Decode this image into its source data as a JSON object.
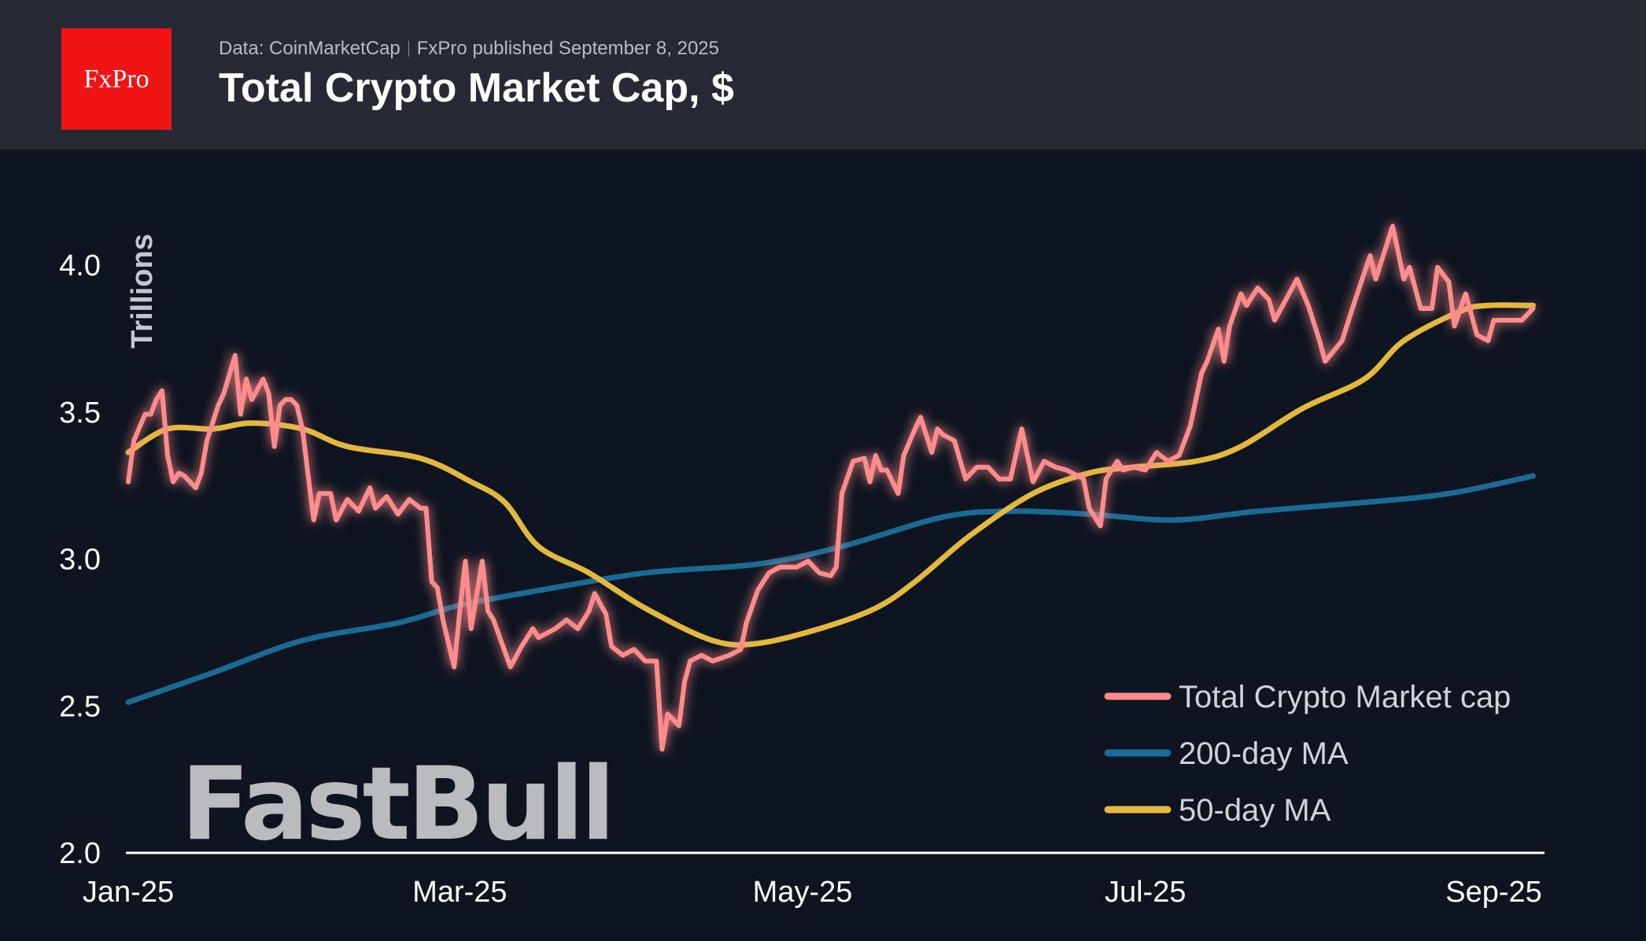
{
  "header": {
    "logo_text": "FxPro",
    "source": "Data: CoinMarketCap",
    "published": "FxPro published September 8, 2025",
    "title": "Total Crypto Market Cap, $"
  },
  "watermark": "FastBull",
  "chart_data": {
    "type": "line",
    "title": "Total Crypto Market Cap, $",
    "ylabel": "Trillions",
    "xlabel": "",
    "ylim": [
      2.0,
      4.0
    ],
    "yticks": [
      "2.0",
      "2.5",
      "3.0",
      "3.5",
      "4.0"
    ],
    "xticks": [
      {
        "date": "2025-01-01",
        "label": "Jan-25"
      },
      {
        "date": "2025-03-01",
        "label": "Mar-25"
      },
      {
        "date": "2025-05-01",
        "label": "May-25"
      },
      {
        "date": "2025-07-01",
        "label": "Jul-25"
      },
      {
        "date": "2025-09-01",
        "label": "Sep-25"
      }
    ],
    "grid": false,
    "legend_position": "bottom-right",
    "series": [
      {
        "name": "Total Crypto Market cap",
        "color": "#ff8c8c",
        "points": [
          [
            "2025-01-01",
            3.26
          ],
          [
            "2025-01-02",
            3.4
          ],
          [
            "2025-01-04",
            3.49
          ],
          [
            "2025-01-05",
            3.49
          ],
          [
            "2025-01-06",
            3.54
          ],
          [
            "2025-01-07",
            3.57
          ],
          [
            "2025-01-08",
            3.35
          ],
          [
            "2025-01-09",
            3.26
          ],
          [
            "2025-01-10",
            3.29
          ],
          [
            "2025-01-11",
            3.28
          ],
          [
            "2025-01-13",
            3.24
          ],
          [
            "2025-01-14",
            3.29
          ],
          [
            "2025-01-15",
            3.4
          ],
          [
            "2025-01-17",
            3.52
          ],
          [
            "2025-01-18",
            3.56
          ],
          [
            "2025-01-20",
            3.69
          ],
          [
            "2025-01-21",
            3.49
          ],
          [
            "2025-01-22",
            3.61
          ],
          [
            "2025-01-23",
            3.54
          ],
          [
            "2025-01-25",
            3.61
          ],
          [
            "2025-01-26",
            3.56
          ],
          [
            "2025-01-27",
            3.38
          ],
          [
            "2025-01-28",
            3.52
          ],
          [
            "2025-01-29",
            3.54
          ],
          [
            "2025-01-30",
            3.54
          ],
          [
            "2025-01-31",
            3.52
          ],
          [
            "2025-02-01",
            3.44
          ],
          [
            "2025-02-03",
            3.13
          ],
          [
            "2025-02-04",
            3.22
          ],
          [
            "2025-02-06",
            3.22
          ],
          [
            "2025-02-07",
            3.13
          ],
          [
            "2025-02-09",
            3.2
          ],
          [
            "2025-02-11",
            3.16
          ],
          [
            "2025-02-13",
            3.24
          ],
          [
            "2025-02-14",
            3.17
          ],
          [
            "2025-02-16",
            3.21
          ],
          [
            "2025-02-18",
            3.15
          ],
          [
            "2025-02-20",
            3.2
          ],
          [
            "2025-02-22",
            3.17
          ],
          [
            "2025-02-23",
            3.17
          ],
          [
            "2025-02-24",
            2.92
          ],
          [
            "2025-02-25",
            2.9
          ],
          [
            "2025-02-26",
            2.79
          ],
          [
            "2025-02-28",
            2.63
          ],
          [
            "2025-03-01",
            2.82
          ],
          [
            "2025-03-02",
            2.99
          ],
          [
            "2025-03-03",
            2.76
          ],
          [
            "2025-03-05",
            2.99
          ],
          [
            "2025-03-06",
            2.82
          ],
          [
            "2025-03-07",
            2.79
          ],
          [
            "2025-03-10",
            2.63
          ],
          [
            "2025-03-12",
            2.7
          ],
          [
            "2025-03-14",
            2.76
          ],
          [
            "2025-03-15",
            2.73
          ],
          [
            "2025-03-18",
            2.76
          ],
          [
            "2025-03-20",
            2.79
          ],
          [
            "2025-03-22",
            2.76
          ],
          [
            "2025-03-24",
            2.82
          ],
          [
            "2025-03-25",
            2.88
          ],
          [
            "2025-03-27",
            2.81
          ],
          [
            "2025-03-28",
            2.7
          ],
          [
            "2025-03-30",
            2.67
          ],
          [
            "2025-04-01",
            2.69
          ],
          [
            "2025-04-03",
            2.65
          ],
          [
            "2025-04-05",
            2.65
          ],
          [
            "2025-04-06",
            2.35
          ],
          [
            "2025-04-07",
            2.47
          ],
          [
            "2025-04-09",
            2.43
          ],
          [
            "2025-04-10",
            2.58
          ],
          [
            "2025-04-11",
            2.65
          ],
          [
            "2025-04-13",
            2.67
          ],
          [
            "2025-04-15",
            2.65
          ],
          [
            "2025-04-18",
            2.67
          ],
          [
            "2025-04-20",
            2.69
          ],
          [
            "2025-04-21",
            2.78
          ],
          [
            "2025-04-23",
            2.89
          ],
          [
            "2025-04-25",
            2.95
          ],
          [
            "2025-04-27",
            2.97
          ],
          [
            "2025-04-30",
            2.97
          ],
          [
            "2025-05-02",
            2.99
          ],
          [
            "2025-05-04",
            2.95
          ],
          [
            "2025-05-06",
            2.94
          ],
          [
            "2025-05-07",
            2.97
          ],
          [
            "2025-05-08",
            3.22
          ],
          [
            "2025-05-10",
            3.33
          ],
          [
            "2025-05-12",
            3.34
          ],
          [
            "2025-05-13",
            3.26
          ],
          [
            "2025-05-14",
            3.35
          ],
          [
            "2025-05-15",
            3.3
          ],
          [
            "2025-05-16",
            3.3
          ],
          [
            "2025-05-18",
            3.22
          ],
          [
            "2025-05-19",
            3.35
          ],
          [
            "2025-05-21",
            3.44
          ],
          [
            "2025-05-22",
            3.48
          ],
          [
            "2025-05-24",
            3.36
          ],
          [
            "2025-05-25",
            3.44
          ],
          [
            "2025-05-26",
            3.42
          ],
          [
            "2025-05-28",
            3.4
          ],
          [
            "2025-05-30",
            3.27
          ],
          [
            "2025-06-01",
            3.31
          ],
          [
            "2025-06-03",
            3.31
          ],
          [
            "2025-06-05",
            3.27
          ],
          [
            "2025-06-07",
            3.27
          ],
          [
            "2025-06-09",
            3.44
          ],
          [
            "2025-06-11",
            3.26
          ],
          [
            "2025-06-13",
            3.33
          ],
          [
            "2025-06-15",
            3.31
          ],
          [
            "2025-06-17",
            3.3
          ],
          [
            "2025-06-20",
            3.27
          ],
          [
            "2025-06-21",
            3.17
          ],
          [
            "2025-06-23",
            3.11
          ],
          [
            "2025-06-24",
            3.27
          ],
          [
            "2025-06-26",
            3.33
          ],
          [
            "2025-06-27",
            3.3
          ],
          [
            "2025-06-29",
            3.31
          ],
          [
            "2025-07-01",
            3.3
          ],
          [
            "2025-07-03",
            3.36
          ],
          [
            "2025-07-05",
            3.33
          ],
          [
            "2025-07-07",
            3.35
          ],
          [
            "2025-07-09",
            3.45
          ],
          [
            "2025-07-11",
            3.63
          ],
          [
            "2025-07-12",
            3.67
          ],
          [
            "2025-07-14",
            3.78
          ],
          [
            "2025-07-15",
            3.67
          ],
          [
            "2025-07-16",
            3.79
          ],
          [
            "2025-07-18",
            3.9
          ],
          [
            "2025-07-19",
            3.86
          ],
          [
            "2025-07-21",
            3.92
          ],
          [
            "2025-07-23",
            3.88
          ],
          [
            "2025-07-24",
            3.81
          ],
          [
            "2025-07-26",
            3.88
          ],
          [
            "2025-07-28",
            3.95
          ],
          [
            "2025-07-30",
            3.86
          ],
          [
            "2025-08-01",
            3.74
          ],
          [
            "2025-08-02",
            3.67
          ],
          [
            "2025-08-05",
            3.74
          ],
          [
            "2025-08-07",
            3.86
          ],
          [
            "2025-08-10",
            4.03
          ],
          [
            "2025-08-11",
            3.95
          ],
          [
            "2025-08-14",
            4.13
          ],
          [
            "2025-08-16",
            3.95
          ],
          [
            "2025-08-17",
            3.99
          ],
          [
            "2025-08-19",
            3.85
          ],
          [
            "2025-08-21",
            3.85
          ],
          [
            "2025-08-22",
            3.99
          ],
          [
            "2025-08-24",
            3.94
          ],
          [
            "2025-08-25",
            3.79
          ],
          [
            "2025-08-27",
            3.9
          ],
          [
            "2025-08-29",
            3.76
          ],
          [
            "2025-08-31",
            3.74
          ],
          [
            "2025-09-01",
            3.81
          ],
          [
            "2025-09-04",
            3.81
          ],
          [
            "2025-09-06",
            3.81
          ],
          [
            "2025-09-08",
            3.85
          ]
        ]
      },
      {
        "name": "200-day MA",
        "color": "#1b6a94",
        "points": [
          [
            "2025-01-01",
            2.51
          ],
          [
            "2025-01-16",
            2.61
          ],
          [
            "2025-02-01",
            2.72
          ],
          [
            "2025-02-18",
            2.78
          ],
          [
            "2025-03-01",
            2.84
          ],
          [
            "2025-03-15",
            2.89
          ],
          [
            "2025-04-03",
            2.95
          ],
          [
            "2025-04-23",
            2.98
          ],
          [
            "2025-05-08",
            3.04
          ],
          [
            "2025-05-26",
            3.14
          ],
          [
            "2025-06-07",
            3.16
          ],
          [
            "2025-06-21",
            3.15
          ],
          [
            "2025-07-06",
            3.13
          ],
          [
            "2025-07-21",
            3.16
          ],
          [
            "2025-08-09",
            3.19
          ],
          [
            "2025-08-24",
            3.22
          ],
          [
            "2025-09-08",
            3.28
          ]
        ]
      },
      {
        "name": "50-day MA",
        "color": "#e2b93e",
        "points": [
          [
            "2025-01-01",
            3.36
          ],
          [
            "2025-01-08",
            3.44
          ],
          [
            "2025-01-16",
            3.44
          ],
          [
            "2025-01-23",
            3.46
          ],
          [
            "2025-02-01",
            3.44
          ],
          [
            "2025-02-09",
            3.38
          ],
          [
            "2025-02-22",
            3.34
          ],
          [
            "2025-03-03",
            3.26
          ],
          [
            "2025-03-09",
            3.19
          ],
          [
            "2025-03-15",
            3.04
          ],
          [
            "2025-03-24",
            2.95
          ],
          [
            "2025-04-03",
            2.83
          ],
          [
            "2025-04-15",
            2.72
          ],
          [
            "2025-04-23",
            2.71
          ],
          [
            "2025-05-04",
            2.76
          ],
          [
            "2025-05-14",
            2.83
          ],
          [
            "2025-05-21",
            2.92
          ],
          [
            "2025-05-31",
            3.08
          ],
          [
            "2025-06-11",
            3.22
          ],
          [
            "2025-06-21",
            3.29
          ],
          [
            "2025-06-29",
            3.31
          ],
          [
            "2025-07-10",
            3.33
          ],
          [
            "2025-07-18",
            3.38
          ],
          [
            "2025-07-29",
            3.51
          ],
          [
            "2025-08-09",
            3.61
          ],
          [
            "2025-08-16",
            3.74
          ],
          [
            "2025-08-26",
            3.84
          ],
          [
            "2025-08-31",
            3.86
          ],
          [
            "2025-09-08",
            3.86
          ]
        ]
      }
    ]
  }
}
